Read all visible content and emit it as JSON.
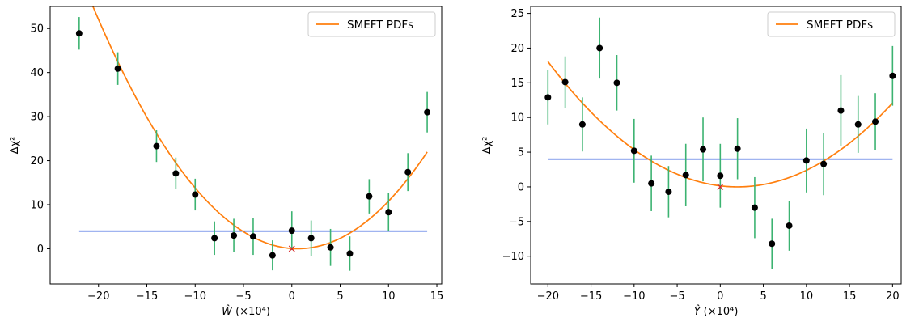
{
  "chart_data": [
    {
      "type": "scatter",
      "xlabel_base": "Ŵ",
      "xlabel_unit": "(×10⁴)",
      "ylabel": "Δχ²",
      "xlim": [
        -25,
        15.5
      ],
      "ylim": [
        -8,
        55
      ],
      "xticks": [
        -20,
        -15,
        -10,
        -5,
        0,
        5,
        10,
        15
      ],
      "yticks": [
        0,
        10,
        20,
        30,
        40,
        50
      ],
      "xtick_labels": [
        "−20",
        "−15",
        "−10",
        "−5",
        "0",
        "5",
        "10",
        "15"
      ],
      "ytick_labels": [
        "0",
        "10",
        "20",
        "30",
        "40",
        "50"
      ],
      "legend": {
        "label": "SMEFT PDFs",
        "placement": "upper right"
      },
      "colors": {
        "fit": "#ff7f0e",
        "threshold": "#4169e1",
        "errorbar": "#3cb371",
        "points": "#000000",
        "best_fit_marker": "#d62728"
      },
      "fit_curve": {
        "a": 0.1225,
        "b": -0.15,
        "c": 0.05
      },
      "threshold": 4,
      "x": [
        -22,
        -18,
        -14,
        -12,
        -10,
        -8,
        -6,
        -4,
        -2,
        0,
        2,
        4,
        6,
        8,
        10,
        12,
        14
      ],
      "y": [
        48.9,
        40.9,
        23.3,
        17.1,
        12.3,
        2.4,
        3.0,
        2.8,
        -1.5,
        4.1,
        2.4,
        0.3,
        -1.1,
        11.9,
        8.3,
        17.4,
        31.0
      ],
      "err": [
        3.7,
        3.7,
        3.6,
        3.6,
        3.6,
        3.8,
        3.8,
        4.2,
        3.4,
        4.4,
        4.0,
        4.2,
        3.9,
        3.9,
        4.3,
        4.3,
        4.6
      ],
      "best_fit": {
        "x": 0,
        "y": 0
      }
    },
    {
      "type": "scatter",
      "xlabel_base": "Ŷ",
      "xlabel_unit": "(×10⁴)",
      "ylabel": "Δχ²",
      "xlim": [
        -22,
        21
      ],
      "ylim": [
        -14,
        26
      ],
      "xticks": [
        -20,
        -15,
        -10,
        -5,
        0,
        5,
        10,
        15,
        20
      ],
      "yticks": [
        -10,
        -5,
        0,
        5,
        10,
        15,
        20,
        25
      ],
      "xtick_labels": [
        "−20",
        "−15",
        "−10",
        "−5",
        "0",
        "5",
        "10",
        "15",
        "20"
      ],
      "ytick_labels": [
        "−10",
        "−5",
        "0",
        "5",
        "10",
        "15",
        "20",
        "25"
      ],
      "legend": {
        "label": "SMEFT PDFs",
        "placement": "upper right"
      },
      "colors": {
        "fit": "#ff7f0e",
        "threshold": "#4169e1",
        "errorbar": "#3cb371",
        "points": "#000000",
        "best_fit_marker": "#d62728"
      },
      "fit_curve": {
        "a": 0.0373,
        "b": -0.1492,
        "c": 0.1492
      },
      "threshold": 4,
      "x": [
        -20,
        -18,
        -16,
        -14,
        -12,
        -10,
        -8,
        -6,
        -4,
        -2,
        0,
        2,
        4,
        6,
        8,
        10,
        12,
        14,
        16,
        18,
        20
      ],
      "y": [
        12.9,
        15.1,
        9.0,
        20.0,
        15.0,
        5.2,
        0.5,
        -0.7,
        1.7,
        5.4,
        1.6,
        5.5,
        -3.0,
        -8.2,
        -5.6,
        3.8,
        3.3,
        11.0,
        9.0,
        9.4,
        16.0
      ],
      "err": [
        3.9,
        3.7,
        3.9,
        4.4,
        4.0,
        4.6,
        4.0,
        3.7,
        4.5,
        4.6,
        4.6,
        4.4,
        4.4,
        3.6,
        3.6,
        4.6,
        4.5,
        5.1,
        4.1,
        4.1,
        4.3
      ],
      "best_fit": {
        "x": 0,
        "y": 0
      }
    }
  ]
}
